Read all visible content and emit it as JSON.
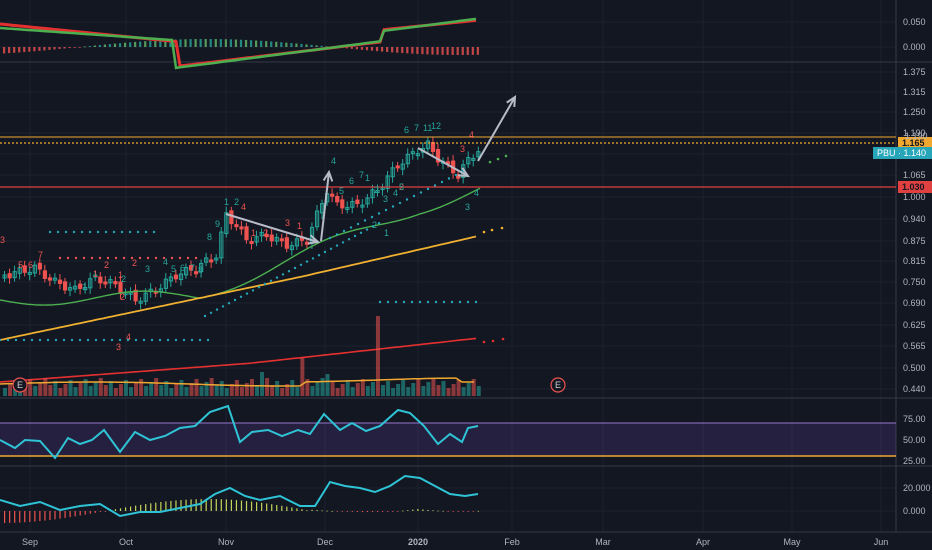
{
  "chart_data": {
    "type": "candlestick",
    "symbol": "PBU",
    "current_price_label": "PBU · 1.140",
    "price_axis": {
      "scale": "log",
      "ticks": [
        "1.375",
        "1.315",
        "1.250",
        "1.190",
        "1.125",
        "1.065",
        "1.000",
        "0.940",
        "0.875",
        "0.815",
        "0.750",
        "0.690",
        "0.625",
        "0.565",
        "0.500",
        "0.440"
      ]
    },
    "levels": [
      {
        "label": "1.165",
        "color": "#f0a830",
        "style": "dashed"
      },
      {
        "label": "1.030",
        "color": "#e04040",
        "style": "solid"
      }
    ],
    "x_axis_labels": [
      "Sep",
      "Oct",
      "Nov",
      "Dec",
      "2020",
      "Feb",
      "Mar",
      "Apr",
      "May",
      "Jun"
    ],
    "macd_panel": {
      "ticks": [
        "0.050",
        "0.000"
      ]
    },
    "rsi_panel": {
      "ticks": [
        "75.00",
        "50.00",
        "25.00"
      ],
      "band": [
        30,
        70
      ]
    },
    "volume_osc_panel": {
      "ticks": [
        "20.000",
        "0.000"
      ]
    },
    "earnings_marker": "E",
    "td_labels": {
      "sell": [
        "3",
        "5",
        "6",
        "7",
        "1",
        "2",
        "1",
        "2",
        "4",
        "1",
        "2",
        "3",
        "1",
        "2",
        "3",
        "4"
      ],
      "setup_green": [
        "1",
        "2",
        "8",
        "9",
        "1",
        "2",
        "3",
        "4",
        "5",
        "6",
        "7",
        "8",
        "4",
        "5",
        "6",
        "7",
        "1",
        "2",
        "3",
        "4",
        "5",
        "6",
        "7",
        "11",
        "12",
        "3",
        "4",
        "1",
        "2"
      ],
      "buy_red": [
        "2",
        "4",
        "3"
      ]
    },
    "colors": {
      "background": "#131722",
      "up": "#26a69a",
      "down": "#ef5350",
      "grid": "#1e2230",
      "ma_fast": "#4caf50",
      "ma_slow": "#f0b030",
      "ma_long": "#e53030",
      "rsi": "#2ec4d6",
      "level_orange": "#f0a830",
      "level_red": "#e04040",
      "price_tag": "#26a6b8"
    }
  }
}
